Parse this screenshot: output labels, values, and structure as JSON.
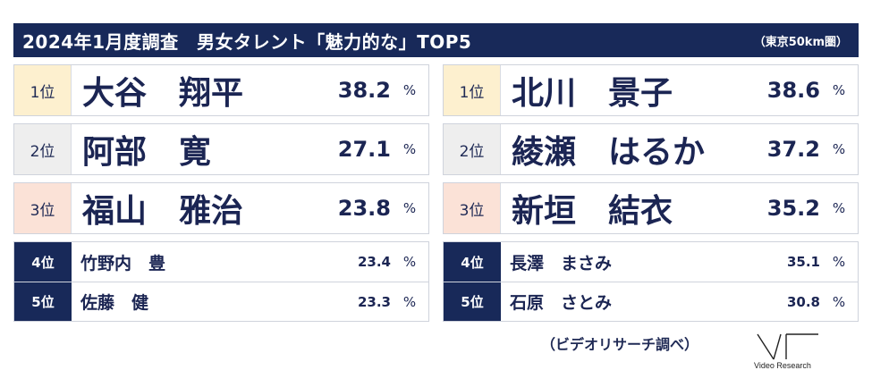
{
  "header": {
    "title": "2024年1月度調査　男女タレント「魅力的な」TOP5",
    "note": "（東京50km圏）"
  },
  "male": [
    {
      "rank": "1位",
      "name": "大谷　翔平",
      "value": "38.2",
      "unit": "%"
    },
    {
      "rank": "2位",
      "name": "阿部　寛",
      "value": "27.1",
      "unit": "%"
    },
    {
      "rank": "3位",
      "name": "福山　雅治",
      "value": "23.8",
      "unit": "%"
    },
    {
      "rank": "4位",
      "name": "竹野内　豊",
      "value": "23.4",
      "unit": "%"
    },
    {
      "rank": "5位",
      "name": "佐藤　健",
      "value": "23.3",
      "unit": "%"
    }
  ],
  "female": [
    {
      "rank": "1位",
      "name": "北川　景子",
      "value": "38.6",
      "unit": "%"
    },
    {
      "rank": "2位",
      "name": "綾瀬　はるか",
      "value": "37.2",
      "unit": "%"
    },
    {
      "rank": "3位",
      "name": "新垣　結衣",
      "value": "35.2",
      "unit": "%"
    },
    {
      "rank": "4位",
      "name": "長澤　まさみ",
      "value": "35.1",
      "unit": "%"
    },
    {
      "rank": "5位",
      "name": "石原　さとみ",
      "value": "30.8",
      "unit": "%"
    }
  ],
  "footer": {
    "source": "（ビデオリサーチ調べ）",
    "logo_text": "Video Research"
  },
  "colors": {
    "navy": "#182959",
    "rank1_bg": "#fdf0cf",
    "rank2_bg": "#eeeeee",
    "rank3_bg": "#fbe2d7"
  }
}
